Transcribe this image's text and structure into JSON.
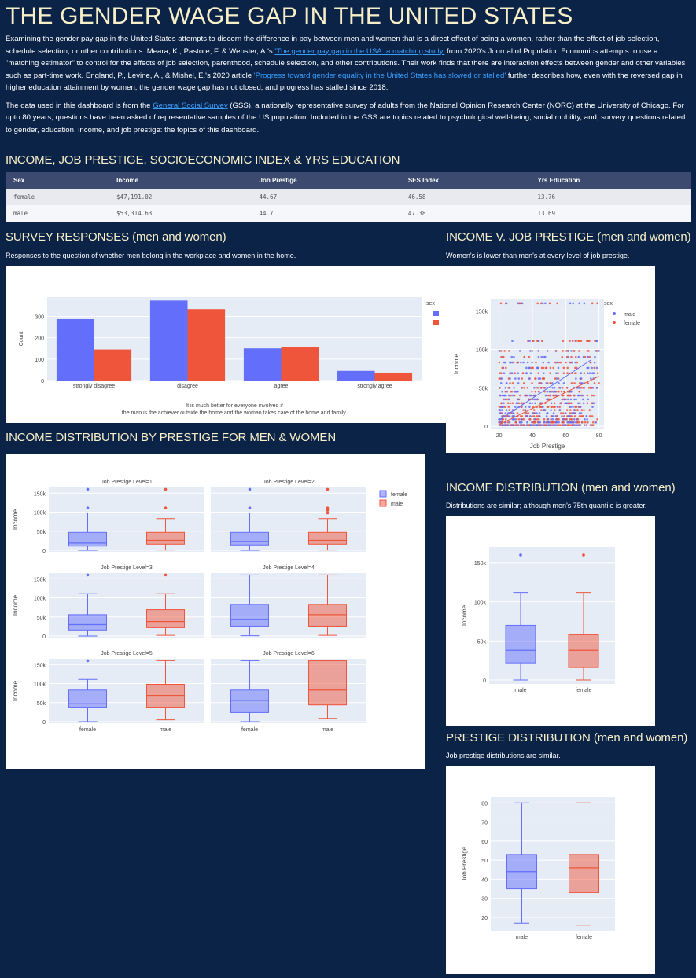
{
  "header": {
    "title": "THE GENDER WAGE GAP IN THE UNITED STATES"
  },
  "intro": {
    "p1_a": "Examining the gender pay gap in the United States attempts to discern the difference in pay between men and women that is a direct effect of being a women, rather than the effect of job selection, schedule selection, or other contributions. Meara, K., Pastore, F. & Webster, A.'s ",
    "p1_link1": "'The gender pay gap in the USA: a matching study'",
    "p1_b": " from 2020's Journal of Population Economics attempts to use a \"matching estimator\" to control for the effects of job selection, parenthood, schedule selection, and other contributions. Their work finds that there are interaction effects between gender and other variables such as part-time work. England, P., Levine, A., & Mishel, E.'s 2020 article ",
    "p1_link2": "'Progress toward gender equality in the United States has slowed or stalled'",
    "p1_c": " further describes how, even with the reversed gap in higher education attainment by women, the gender wage gap has not closed, and progress has stalled since 2018.",
    "p2_a": "The data used in this dashboard is from the ",
    "p2_link": "General Social Survey",
    "p2_b": " (GSS), a nationally representative survey of adults from the National Opinion Research Center (NORC) at the University of Chicago. For upto 80 years, questions have been asked of representative samples of the US population. Included in the GSS are topics related to psychological well-being, social mobility, and, survery questions related to gender, education, income, and job prestige: the topics of this dashboard."
  },
  "stats_section": {
    "title": "INCOME, JOB PRESTIGE, SOCIOECONOMIC INDEX & YRS EDUCATION",
    "headers": [
      "Sex",
      "Income",
      "Job Prestige",
      "SES Index",
      "Yrs Education"
    ],
    "rows": [
      [
        "female",
        "$47,191.02",
        "44.67",
        "46.58",
        "13.76"
      ],
      [
        "male",
        "$53,314.63",
        "44.7",
        "47.38",
        "13.69"
      ]
    ]
  },
  "survey_section": {
    "title": "SURVEY RESPONSES (men and women)",
    "subtitle": "Responses to the question of whether men belong in the workplace and women in the home."
  },
  "scatter_section": {
    "title": "INCOME V. JOB PRESTIGE (men and women)",
    "subtitle": "Women's is lower than men's at every level of job prestige."
  },
  "boxgrid_section": {
    "title": "INCOME DISTRIBUTION BY PRESTIGE FOR MEN & WOMEN"
  },
  "income_dist_section": {
    "title": "INCOME DISTRIBUTION (men and women)",
    "subtitle": "Distributions are similar; although men's 75th quantile is greater."
  },
  "prestige_dist_section": {
    "title": "PRESTIGE DISTRIBUTION (men and women)",
    "subtitle": "Job prestige distributions are similar."
  },
  "colors": {
    "background": "#0b2347",
    "title": "#f7efc8",
    "female_bar": "#636efa",
    "male_bar": "#ef553b",
    "plot_bg": "#e5ecf6"
  },
  "chart_data": [
    {
      "id": "survey",
      "type": "bar",
      "categories": [
        "strongly disagree",
        "disagree",
        "agree",
        "strongly agree"
      ],
      "series": [
        {
          "name": "",
          "color": "#636efa",
          "values": [
            287,
            374,
            150,
            45
          ]
        },
        {
          "name": "",
          "color": "#ef553b",
          "values": [
            145,
            334,
            156,
            37
          ]
        }
      ],
      "legend_title": "sex",
      "xlabel": "It is much better for everyone involved if\nthe man is the achiever outside the home and the woman takes care of the home and family.",
      "ylabel": "Count",
      "yticks": [
        0,
        100,
        200,
        300
      ],
      "ylim": [
        0,
        390
      ]
    },
    {
      "id": "scatter",
      "type": "scatter",
      "legend_title": "sex",
      "series": [
        {
          "name": "male",
          "color": "#636efa",
          "trend": [
            [
              20,
              8000
            ],
            [
              75,
              86000
            ]
          ]
        },
        {
          "name": "female",
          "color": "#ef553b",
          "trend": [
            [
              20,
              2000
            ],
            [
              80,
              65000
            ]
          ]
        }
      ],
      "xlabel": "Job Prestige",
      "ylabel": "Income",
      "xticks": [
        20,
        40,
        60,
        80
      ],
      "yticks": [
        0,
        50000,
        100000,
        150000
      ],
      "ytick_labels": [
        "0",
        "50k",
        "100k",
        "150k"
      ],
      "xlim": [
        15,
        83
      ],
      "ylim": [
        -4000,
        166000
      ]
    },
    {
      "id": "box_by_prestige",
      "type": "box",
      "legend": [
        "female",
        "male"
      ],
      "facet_label_prefix": "Job Prestige Level=",
      "ylabel": "Income",
      "yticks": [
        0,
        50000,
        100000,
        150000
      ],
      "ytick_labels": [
        "0",
        "50k",
        "100k",
        "150k"
      ],
      "ylim": [
        -4000,
        165000
      ],
      "categories": [
        "female",
        "male"
      ],
      "facets": [
        {
          "level": 1,
          "female": {
            "min": 0,
            "q1": 11000,
            "median": 19000,
            "q3": 47000,
            "max": 98000,
            "outliers": [
              111000,
              160000
            ]
          },
          "male": {
            "min": 1000,
            "q1": 16000,
            "median": 26000,
            "q3": 47000,
            "max": 83000,
            "outliers": [
              111000,
              160000
            ]
          }
        },
        {
          "level": 2,
          "female": {
            "min": 0,
            "q1": 14000,
            "median": 23000,
            "q3": 47000,
            "max": 98000,
            "outliers": [
              111000,
              160000
            ]
          },
          "male": {
            "min": 1000,
            "q1": 16000,
            "median": 26000,
            "q3": 47000,
            "max": 83000,
            "outliers": [
              98000,
              105000,
              111000,
              160000
            ]
          }
        },
        {
          "level": 3,
          "female": {
            "min": 0,
            "q1": 16000,
            "median": 30000,
            "q3": 56000,
            "max": 111000,
            "outliers": [
              160000
            ]
          },
          "male": {
            "min": 2000,
            "q1": 22000,
            "median": 38000,
            "q3": 69000,
            "max": 111000,
            "outliers": [
              160000
            ]
          }
        },
        {
          "level": 4,
          "female": {
            "min": 1000,
            "q1": 26000,
            "median": 44000,
            "q3": 83000,
            "max": 160000,
            "outliers": []
          },
          "male": {
            "min": 2000,
            "q1": 26000,
            "median": 56000,
            "q3": 83000,
            "max": 160000,
            "outliers": []
          }
        },
        {
          "level": 5,
          "female": {
            "min": 0,
            "q1": 38000,
            "median": 47000,
            "q3": 83000,
            "max": 111000,
            "outliers": [
              160000
            ]
          },
          "male": {
            "min": 5000,
            "q1": 38000,
            "median": 69000,
            "q3": 98000,
            "max": 160000,
            "outliers": []
          }
        },
        {
          "level": 6,
          "female": {
            "min": 0,
            "q1": 24000,
            "median": 56000,
            "q3": 83000,
            "max": 160000,
            "outliers": []
          },
          "male": {
            "min": 9000,
            "q1": 44000,
            "median": 83000,
            "q3": 160000,
            "max": 160000,
            "outliers": []
          }
        }
      ]
    },
    {
      "id": "income_box",
      "type": "box",
      "categories": [
        "male",
        "female"
      ],
      "ylabel": "Income",
      "yticks": [
        0,
        50000,
        100000,
        150000
      ],
      "ytick_labels": [
        "0",
        "50k",
        "100k",
        "150k"
      ],
      "ylim": [
        -5000,
        170000
      ],
      "boxes": [
        {
          "name": "male",
          "color": "#636efa",
          "min": 0,
          "q1": 22000,
          "median": 38000,
          "q3": 70000,
          "max": 112000,
          "outliers": [
            160000
          ]
        },
        {
          "name": "female",
          "color": "#ef553b",
          "min": 0,
          "q1": 16000,
          "median": 38000,
          "q3": 58000,
          "max": 112000,
          "outliers": [
            160000
          ]
        }
      ]
    },
    {
      "id": "prestige_box",
      "type": "box",
      "categories": [
        "male",
        "female"
      ],
      "ylabel": "Job Prestige",
      "yticks": [
        20,
        30,
        40,
        50,
        60,
        70,
        80
      ],
      "ylim": [
        13,
        83
      ],
      "boxes": [
        {
          "name": "male",
          "color": "#636efa",
          "min": 17,
          "q1": 35,
          "median": 44,
          "q3": 53,
          "max": 80,
          "outliers": []
        },
        {
          "name": "female",
          "color": "#ef553b",
          "min": 16,
          "q1": 33,
          "median": 46,
          "q3": 53,
          "max": 80,
          "outliers": []
        }
      ]
    }
  ]
}
